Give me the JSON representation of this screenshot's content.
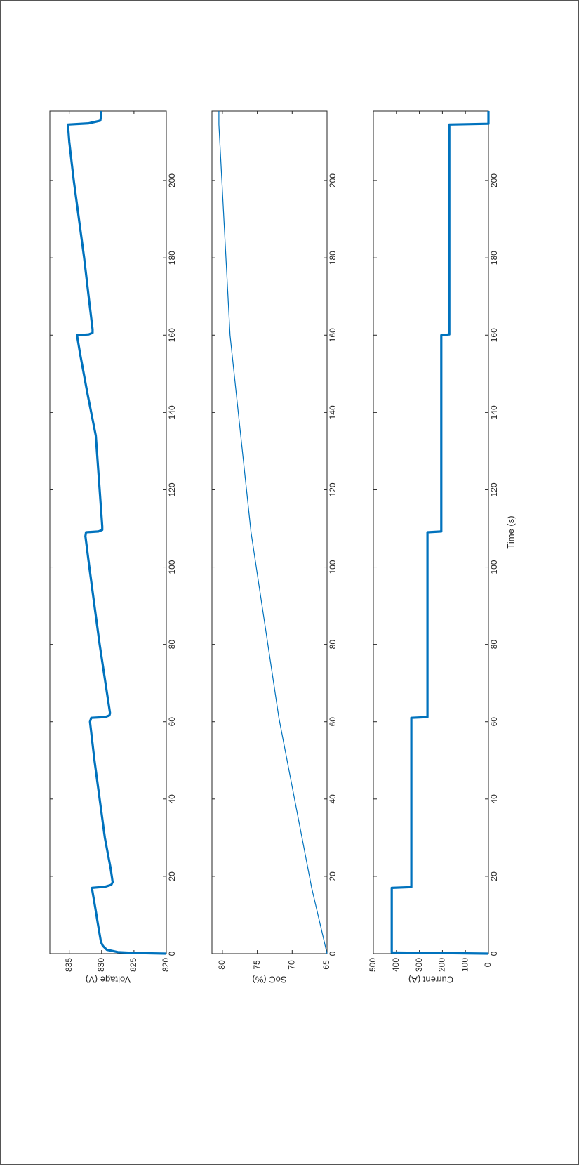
{
  "figure": {
    "orientation": "rotated-90-clockwise"
  },
  "chart_data": [
    {
      "type": "line",
      "ylabel": "Voltage (V)",
      "xlabel": "",
      "xlim": [
        0,
        218
      ],
      "ylim": [
        820,
        838
      ],
      "xticks": [
        0,
        20,
        40,
        60,
        80,
        100,
        120,
        140,
        160,
        180,
        200
      ],
      "yticks": [
        820,
        825,
        830,
        835
      ],
      "color": "#0072BD",
      "grid": false,
      "series": [
        {
          "x": [
            0,
            0.15,
            0.4,
            1,
            2,
            3,
            5,
            8,
            12,
            17,
            17.3,
            17.8,
            18.5,
            22,
            30,
            40,
            50,
            60,
            61,
            61.2,
            61.6,
            62.2,
            70,
            80,
            90,
            100,
            108,
            109,
            109.2,
            109.6,
            110.5,
            120,
            134,
            145,
            155,
            160,
            160.2,
            160.6,
            161.5,
            170,
            180,
            190,
            200,
            210,
            214.5,
            214.8,
            215.5,
            216.5,
            218
          ],
          "y": [
            820,
            824.5,
            827.5,
            829.2,
            829.8,
            830.1,
            830.3,
            830.6,
            831.0,
            831.5,
            829.5,
            828.5,
            828.3,
            828.6,
            829.5,
            830.3,
            831.1,
            831.8,
            831.6,
            829.5,
            828.8,
            828.7,
            829.4,
            830.3,
            831.1,
            831.9,
            832.5,
            832.4,
            830.5,
            829.9,
            829.9,
            830.3,
            830.9,
            832.2,
            833.3,
            833.8,
            832.0,
            831.4,
            831.4,
            832.0,
            832.7,
            833.5,
            834.3,
            835.0,
            835.2,
            832.0,
            830.2,
            830.1,
            830.1
          ]
        }
      ]
    },
    {
      "type": "line",
      "ylabel": "SoC (%)",
      "xlabel": "",
      "xlim": [
        0,
        218
      ],
      "ylim": [
        65,
        81.5
      ],
      "xticks": [
        0,
        20,
        40,
        60,
        80,
        100,
        120,
        140,
        160,
        180,
        200
      ],
      "yticks": [
        65,
        70,
        75,
        80
      ],
      "color": "#0072BD",
      "grid": false,
      "series": [
        {
          "x": [
            0,
            17,
            61,
            109,
            160,
            214.5,
            218
          ],
          "y": [
            65.0,
            67.2,
            71.9,
            75.9,
            78.9,
            80.5,
            80.5
          ]
        }
      ]
    },
    {
      "type": "line",
      "ylabel": "Current (A)",
      "xlabel": "Time (s)",
      "xlim": [
        0,
        218
      ],
      "ylim": [
        0,
        500
      ],
      "xticks": [
        0,
        20,
        40,
        60,
        80,
        100,
        120,
        140,
        160,
        180,
        200
      ],
      "yticks": [
        0,
        100,
        200,
        300,
        400,
        500
      ],
      "color": "#0072BD",
      "grid": false,
      "series": [
        {
          "x": [
            0,
            0.3,
            0.6,
            17,
            17.2,
            61,
            61.2,
            109,
            109.2,
            160,
            160.2,
            214.5,
            214.7,
            218
          ],
          "y": [
            0,
            420,
            420,
            420,
            335,
            335,
            265,
            265,
            205,
            205,
            170,
            170,
            0,
            0
          ]
        }
      ]
    }
  ]
}
